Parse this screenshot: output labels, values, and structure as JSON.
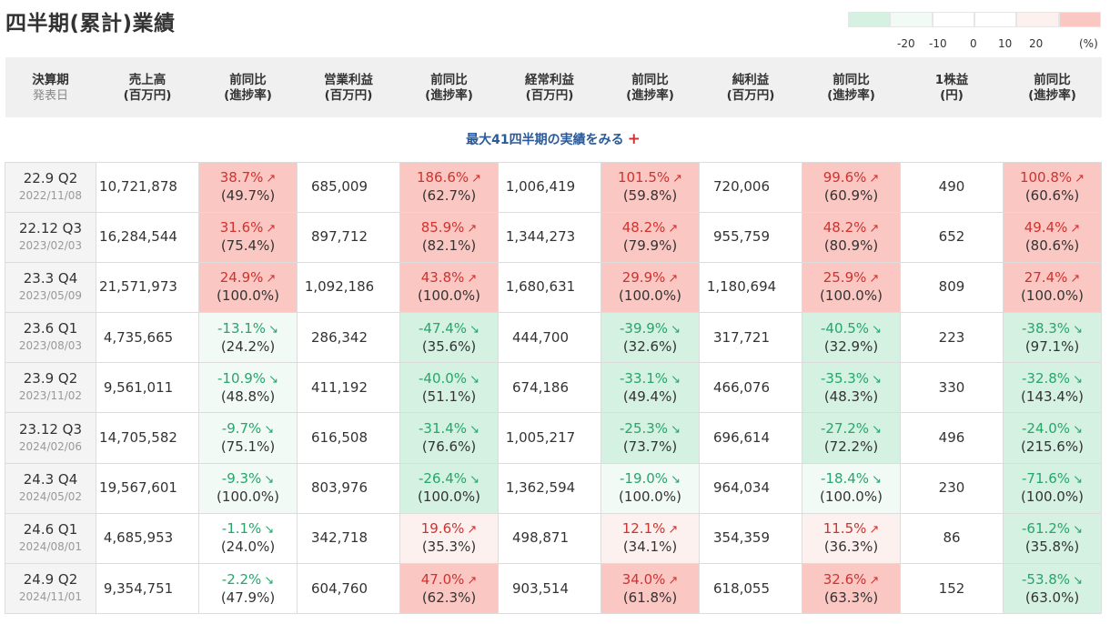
{
  "title": "四半期(累計)業績",
  "legend": {
    "colors": [
      "#d4f1e2",
      "#f2faf6",
      "#ffffff",
      "#ffffff",
      "#fdf1f0",
      "#fbc7c3"
    ],
    "ticks": [
      "-20",
      "-10",
      "0",
      "10",
      "20"
    ],
    "unit": "(%)"
  },
  "headers": [
    {
      "line1": "決算期",
      "line2": "発表日"
    },
    {
      "line1": "売上高",
      "line2": "(百万円)"
    },
    {
      "line1": "前同比",
      "line2": "(進捗率)"
    },
    {
      "line1": "営業利益",
      "line2": "(百万円)"
    },
    {
      "line1": "前同比",
      "line2": "(進捗率)"
    },
    {
      "line1": "経常利益",
      "line2": "(百万円)"
    },
    {
      "line1": "前同比",
      "line2": "(進捗率)"
    },
    {
      "line1": "純利益",
      "line2": "(百万円)"
    },
    {
      "line1": "前同比",
      "line2": "(進捗率)"
    },
    {
      "line1": "1株益",
      "line2": "(円)"
    },
    {
      "line1": "前同比",
      "line2": "(進捗率)"
    }
  ],
  "more_link": {
    "label": "最大41四半期の実績をみる",
    "icon": "plus-icon"
  },
  "rows": [
    {
      "period": "22.9 Q2",
      "date": "2022/11/08",
      "sales": "10,721,878",
      "sales_yoy": {
        "pct": "38.7%",
        "prog": "(49.7%)",
        "dir": "up",
        "shade": "pos-strong"
      },
      "op": "685,009",
      "op_yoy": {
        "pct": "186.6%",
        "prog": "(62.7%)",
        "dir": "up",
        "shade": "pos-strong"
      },
      "ord": "1,006,419",
      "ord_yoy": {
        "pct": "101.5%",
        "prog": "(59.8%)",
        "dir": "up",
        "shade": "pos-strong"
      },
      "net": "720,006",
      "net_yoy": {
        "pct": "99.6%",
        "prog": "(60.9%)",
        "dir": "up",
        "shade": "pos-strong"
      },
      "eps": "490",
      "eps_yoy": {
        "pct": "100.8%",
        "prog": "(60.6%)",
        "dir": "up",
        "shade": "pos-strong"
      }
    },
    {
      "period": "22.12 Q3",
      "date": "2023/02/03",
      "sales": "16,284,544",
      "sales_yoy": {
        "pct": "31.6%",
        "prog": "(75.4%)",
        "dir": "up",
        "shade": "pos-strong"
      },
      "op": "897,712",
      "op_yoy": {
        "pct": "85.9%",
        "prog": "(82.1%)",
        "dir": "up",
        "shade": "pos-strong"
      },
      "ord": "1,344,273",
      "ord_yoy": {
        "pct": "48.2%",
        "prog": "(79.9%)",
        "dir": "up",
        "shade": "pos-strong"
      },
      "net": "955,759",
      "net_yoy": {
        "pct": "48.2%",
        "prog": "(80.9%)",
        "dir": "up",
        "shade": "pos-strong"
      },
      "eps": "652",
      "eps_yoy": {
        "pct": "49.4%",
        "prog": "(80.6%)",
        "dir": "up",
        "shade": "pos-strong"
      }
    },
    {
      "period": "23.3 Q4",
      "date": "2023/05/09",
      "sales": "21,571,973",
      "sales_yoy": {
        "pct": "24.9%",
        "prog": "(100.0%)",
        "dir": "up",
        "shade": "pos-strong"
      },
      "op": "1,092,186",
      "op_yoy": {
        "pct": "43.8%",
        "prog": "(100.0%)",
        "dir": "up",
        "shade": "pos-strong"
      },
      "ord": "1,680,631",
      "ord_yoy": {
        "pct": "29.9%",
        "prog": "(100.0%)",
        "dir": "up",
        "shade": "pos-strong"
      },
      "net": "1,180,694",
      "net_yoy": {
        "pct": "25.9%",
        "prog": "(100.0%)",
        "dir": "up",
        "shade": "pos-strong"
      },
      "eps": "809",
      "eps_yoy": {
        "pct": "27.4%",
        "prog": "(100.0%)",
        "dir": "up",
        "shade": "pos-strong"
      }
    },
    {
      "period": "23.6 Q1",
      "date": "2023/08/03",
      "sales": "4,735,665",
      "sales_yoy": {
        "pct": "-13.1%",
        "prog": "(24.2%)",
        "dir": "down",
        "shade": "neg-light"
      },
      "op": "286,342",
      "op_yoy": {
        "pct": "-47.4%",
        "prog": "(35.6%)",
        "dir": "down",
        "shade": "neg-strong"
      },
      "ord": "444,700",
      "ord_yoy": {
        "pct": "-39.9%",
        "prog": "(32.6%)",
        "dir": "down",
        "shade": "neg-strong"
      },
      "net": "317,721",
      "net_yoy": {
        "pct": "-40.5%",
        "prog": "(32.9%)",
        "dir": "down",
        "shade": "neg-strong"
      },
      "eps": "223",
      "eps_yoy": {
        "pct": "-38.3%",
        "prog": "(97.1%)",
        "dir": "down",
        "shade": "neg-strong"
      }
    },
    {
      "period": "23.9 Q2",
      "date": "2023/11/02",
      "sales": "9,561,011",
      "sales_yoy": {
        "pct": "-10.9%",
        "prog": "(48.8%)",
        "dir": "down",
        "shade": "neg-light"
      },
      "op": "411,192",
      "op_yoy": {
        "pct": "-40.0%",
        "prog": "(51.1%)",
        "dir": "down",
        "shade": "neg-strong"
      },
      "ord": "674,186",
      "ord_yoy": {
        "pct": "-33.1%",
        "prog": "(49.4%)",
        "dir": "down",
        "shade": "neg-strong"
      },
      "net": "466,076",
      "net_yoy": {
        "pct": "-35.3%",
        "prog": "(48.3%)",
        "dir": "down",
        "shade": "neg-strong"
      },
      "eps": "330",
      "eps_yoy": {
        "pct": "-32.8%",
        "prog": "(143.4%)",
        "dir": "down",
        "shade": "neg-strong"
      }
    },
    {
      "period": "23.12 Q3",
      "date": "2024/02/06",
      "sales": "14,705,582",
      "sales_yoy": {
        "pct": "-9.7%",
        "prog": "(75.1%)",
        "dir": "down",
        "shade": "neg-light"
      },
      "op": "616,508",
      "op_yoy": {
        "pct": "-31.4%",
        "prog": "(76.6%)",
        "dir": "down",
        "shade": "neg-strong"
      },
      "ord": "1,005,217",
      "ord_yoy": {
        "pct": "-25.3%",
        "prog": "(73.7%)",
        "dir": "down",
        "shade": "neg-strong"
      },
      "net": "696,614",
      "net_yoy": {
        "pct": "-27.2%",
        "prog": "(72.2%)",
        "dir": "down",
        "shade": "neg-strong"
      },
      "eps": "496",
      "eps_yoy": {
        "pct": "-24.0%",
        "prog": "(215.6%)",
        "dir": "down",
        "shade": "neg-strong"
      }
    },
    {
      "period": "24.3 Q4",
      "date": "2024/05/02",
      "sales": "19,567,601",
      "sales_yoy": {
        "pct": "-9.3%",
        "prog": "(100.0%)",
        "dir": "down",
        "shade": "neg-light"
      },
      "op": "803,976",
      "op_yoy": {
        "pct": "-26.4%",
        "prog": "(100.0%)",
        "dir": "down",
        "shade": "neg-strong"
      },
      "ord": "1,362,594",
      "ord_yoy": {
        "pct": "-19.0%",
        "prog": "(100.0%)",
        "dir": "down",
        "shade": "neg-light"
      },
      "net": "964,034",
      "net_yoy": {
        "pct": "-18.4%",
        "prog": "(100.0%)",
        "dir": "down",
        "shade": "neg-light"
      },
      "eps": "230",
      "eps_yoy": {
        "pct": "-71.6%",
        "prog": "(100.0%)",
        "dir": "down",
        "shade": "neg-strong"
      }
    },
    {
      "period": "24.6 Q1",
      "date": "2024/08/01",
      "sales": "4,685,953",
      "sales_yoy": {
        "pct": "-1.1%",
        "prog": "(24.0%)",
        "dir": "down",
        "shade": "none"
      },
      "op": "342,718",
      "op_yoy": {
        "pct": "19.6%",
        "prog": "(35.3%)",
        "dir": "up",
        "shade": "pos-light"
      },
      "ord": "498,871",
      "ord_yoy": {
        "pct": "12.1%",
        "prog": "(34.1%)",
        "dir": "up",
        "shade": "pos-light"
      },
      "net": "354,359",
      "net_yoy": {
        "pct": "11.5%",
        "prog": "(36.3%)",
        "dir": "up",
        "shade": "pos-light"
      },
      "eps": "86",
      "eps_yoy": {
        "pct": "-61.2%",
        "prog": "(35.8%)",
        "dir": "down",
        "shade": "neg-strong"
      }
    },
    {
      "period": "24.9 Q2",
      "date": "2024/11/01",
      "sales": "9,354,751",
      "sales_yoy": {
        "pct": "-2.2%",
        "prog": "(47.9%)",
        "dir": "down",
        "shade": "none"
      },
      "op": "604,760",
      "op_yoy": {
        "pct": "47.0%",
        "prog": "(62.3%)",
        "dir": "up",
        "shade": "pos-strong"
      },
      "ord": "903,514",
      "ord_yoy": {
        "pct": "34.0%",
        "prog": "(61.8%)",
        "dir": "up",
        "shade": "pos-strong"
      },
      "net": "618,055",
      "net_yoy": {
        "pct": "32.6%",
        "prog": "(63.3%)",
        "dir": "up",
        "shade": "pos-strong"
      },
      "eps": "152",
      "eps_yoy": {
        "pct": "-53.8%",
        "prog": "(63.0%)",
        "dir": "down",
        "shade": "neg-strong"
      }
    }
  ]
}
